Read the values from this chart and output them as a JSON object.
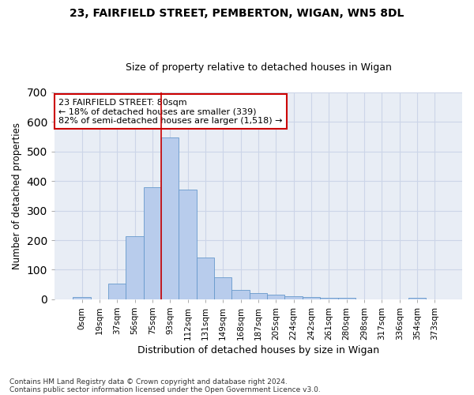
{
  "title1": "23, FAIRFIELD STREET, PEMBERTON, WIGAN, WN5 8DL",
  "title2": "Size of property relative to detached houses in Wigan",
  "xlabel": "Distribution of detached houses by size in Wigan",
  "ylabel": "Number of detached properties",
  "bar_labels": [
    "0sqm",
    "19sqm",
    "37sqm",
    "56sqm",
    "75sqm",
    "93sqm",
    "112sqm",
    "131sqm",
    "149sqm",
    "168sqm",
    "187sqm",
    "205sqm",
    "224sqm",
    "242sqm",
    "261sqm",
    "280sqm",
    "298sqm",
    "317sqm",
    "336sqm",
    "354sqm",
    "373sqm"
  ],
  "bar_values": [
    7,
    0,
    52,
    213,
    378,
    547,
    370,
    140,
    75,
    32,
    22,
    16,
    10,
    8,
    6,
    5,
    0,
    0,
    0,
    6,
    0
  ],
  "bar_color": "#b8ccec",
  "bar_edge_color": "#6699cc",
  "vline_x": 4.5,
  "annotation_line1": "23 FAIRFIELD STREET: 80sqm",
  "annotation_line2": "← 18% of detached houses are smaller (339)",
  "annotation_line3": "82% of semi-detached houses are larger (1,518) →",
  "annotation_box_color": "#ffffff",
  "annotation_box_edge_color": "#cc0000",
  "vline_color": "#cc0000",
  "grid_color": "#ccd5e8",
  "bg_color": "#e8edf5",
  "footer1": "Contains HM Land Registry data © Crown copyright and database right 2024.",
  "footer2": "Contains public sector information licensed under the Open Government Licence v3.0.",
  "ylim": [
    0,
    700
  ],
  "yticks": [
    0,
    100,
    200,
    300,
    400,
    500,
    600,
    700
  ]
}
